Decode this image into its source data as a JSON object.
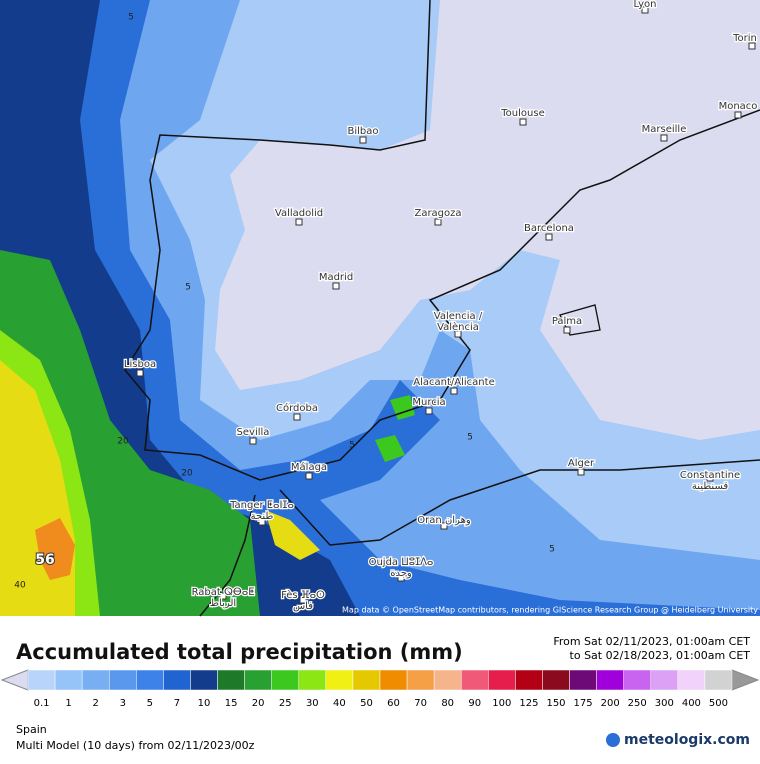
{
  "map": {
    "cities": [
      [
        "Lyon"
      ],
      [
        "Torin"
      ],
      [
        "Monaco"
      ],
      [
        "Toulouse"
      ],
      [
        "Marseille"
      ],
      [
        "Bilbao"
      ],
      [
        "Valladolid"
      ],
      [
        "Zaragoza"
      ],
      [
        "Barcelona"
      ],
      [
        "Madrid"
      ],
      [
        "Palma"
      ],
      [
        "Valencia /",
        "València"
      ],
      [
        "Alacant/Alicante"
      ],
      [
        "Murcia"
      ],
      [
        "Lisboa"
      ],
      [
        "Córdoba"
      ],
      [
        "Sevilla"
      ],
      [
        "Málaga"
      ],
      [
        "Alger"
      ],
      [
        "Constantine",
        "قسنطينة"
      ],
      [
        "Tanger ⵟⴰⵏⵊⴰ",
        "طنجة"
      ],
      [
        "Oran وهران"
      ],
      [
        "Oujda ⵡⵓⵊⴷⴰ",
        "وجدة"
      ],
      [
        "Rabat ⵕⴱⴰⵟ",
        "الرباط"
      ],
      [
        "Fès ⴼⴰⵙ",
        "فاس"
      ]
    ],
    "contour_labels": [
      5,
      5,
      20,
      20,
      5,
      5,
      5,
      40
    ],
    "max_value": 56,
    "attribution": "Map data © OpenStreetMap contributors, rendering GIScience Research Group @ Heidelberg University"
  },
  "header": {
    "title": "Accumulated total precipitation (mm)",
    "period": [
      "From Sat 02/11/2023, 01:00am CET",
      "to Sat 02/18/2023, 01:00am CET"
    ]
  },
  "scale": {
    "values": [
      0.1,
      1,
      2,
      3,
      5,
      7,
      10,
      15,
      20,
      25,
      30,
      40,
      50,
      60,
      70,
      80,
      90,
      100,
      125,
      150,
      175,
      200,
      250,
      300,
      400,
      500
    ],
    "colors": [
      "#b8d4fa",
      "#96c3f8",
      "#78aef2",
      "#5a98ee",
      "#3c82e8",
      "#2064d2",
      "#143c8c",
      "#1e7a28",
      "#28a032",
      "#3cc81e",
      "#8ce614",
      "#f0f014",
      "#e6c800",
      "#f08c00",
      "#f5a046",
      "#f5b48c",
      "#f05a78",
      "#e61e4b",
      "#b40014",
      "#8c0a1e",
      "#6e0a78",
      "#a000dc",
      "#c864f0",
      "#dca0f5",
      "#f0d2fa",
      "#d2d2d2"
    ]
  },
  "footer": {
    "region": "Spain",
    "model": "Multi Model (10 days) from 02/11/2023/00z",
    "brand": "meteologix.com"
  }
}
